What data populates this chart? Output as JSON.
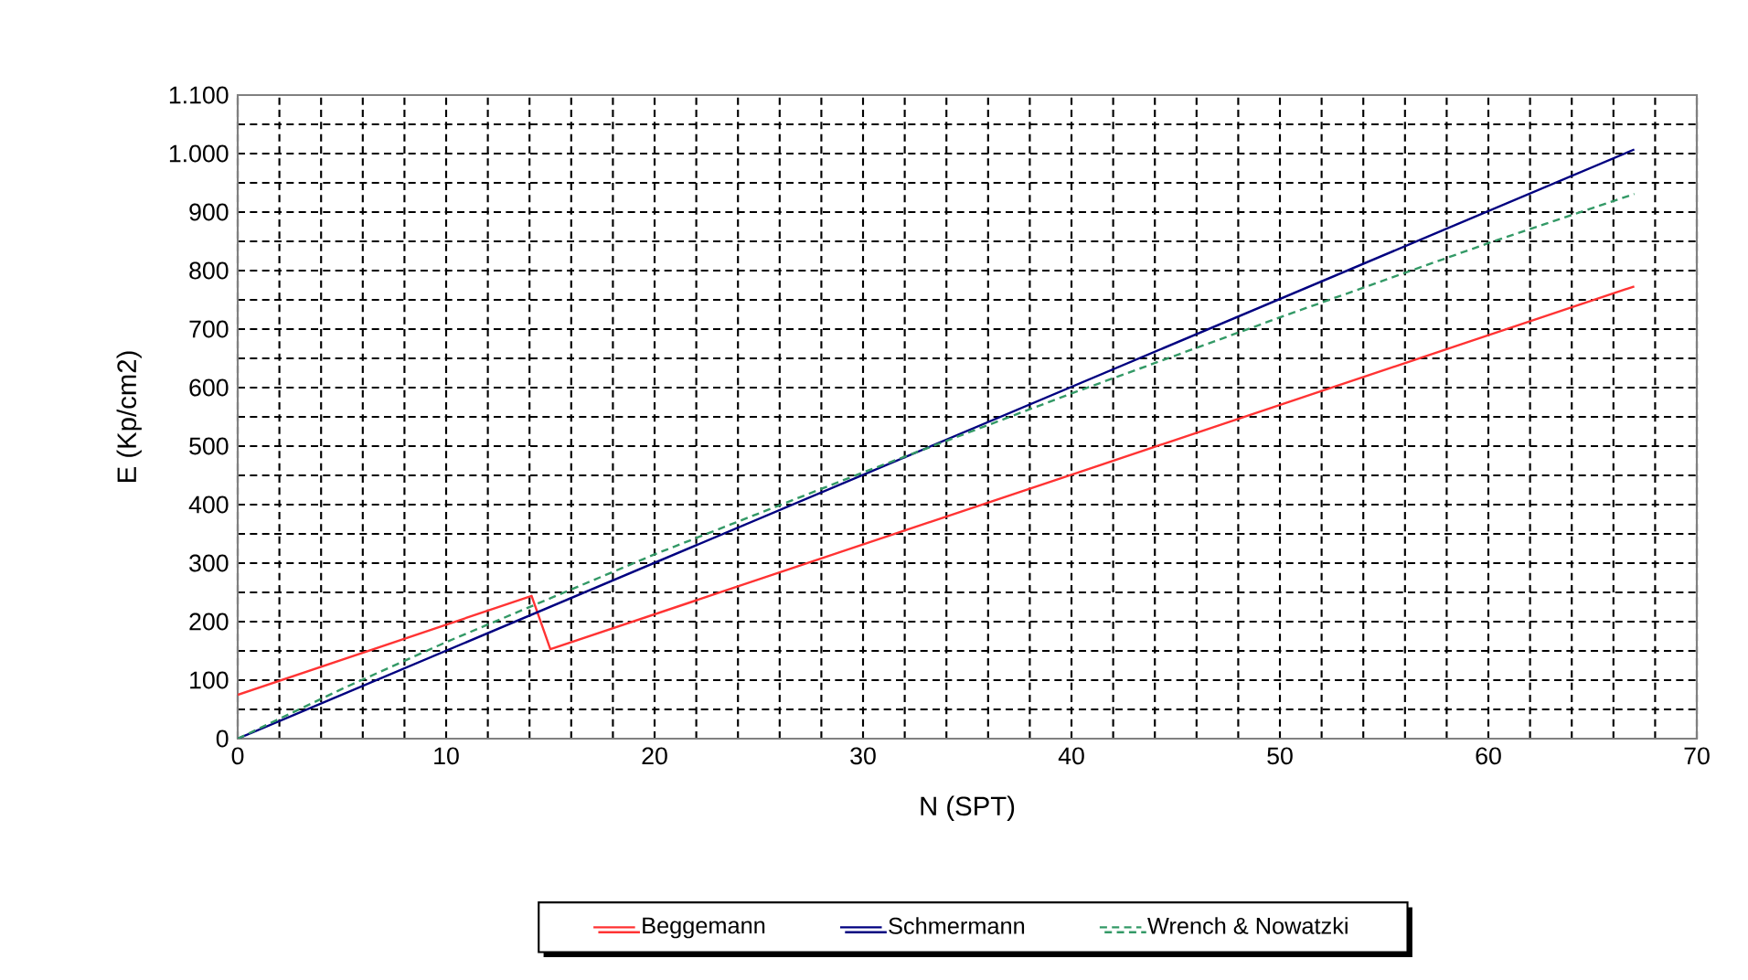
{
  "chart_data": {
    "type": "line",
    "xlabel": "N (SPT)",
    "ylabel": "E (Kp/cm2)",
    "xlim": [
      0,
      70
    ],
    "ylim": [
      0,
      1100
    ],
    "xticks": [
      0,
      {
        "value": 2,
        "label": null
      },
      {
        "value": 4,
        "label": null
      },
      {
        "value": 6,
        "label": null
      },
      {
        "value": 8,
        "label": null
      },
      10,
      {
        "value": 12,
        "label": null
      },
      {
        "value": 14,
        "label": null
      },
      {
        "value": 16,
        "label": null
      },
      {
        "value": 18,
        "label": null
      },
      20,
      {
        "value": 22,
        "label": null
      },
      {
        "value": 24,
        "label": null
      },
      {
        "value": 26,
        "label": null
      },
      {
        "value": 28,
        "label": null
      },
      30,
      {
        "value": 32,
        "label": null
      },
      {
        "value": 34,
        "label": null
      },
      {
        "value": 36,
        "label": null
      },
      {
        "value": 38,
        "label": null
      },
      40,
      {
        "value": 42,
        "label": null
      },
      {
        "value": 44,
        "label": null
      },
      {
        "value": 46,
        "label": null
      },
      {
        "value": 48,
        "label": null
      },
      50,
      {
        "value": 52,
        "label": null
      },
      {
        "value": 54,
        "label": null
      },
      {
        "value": 56,
        "label": null
      },
      {
        "value": 58,
        "label": null
      },
      60,
      {
        "value": 62,
        "label": null
      },
      {
        "value": 64,
        "label": null
      },
      {
        "value": 66,
        "label": null
      },
      {
        "value": 68,
        "label": null
      },
      70
    ],
    "yticks": [
      0,
      {
        "value": 50,
        "label": null
      },
      100,
      {
        "value": 150,
        "label": null
      },
      200,
      {
        "value": 250,
        "label": null
      },
      300,
      {
        "value": 350,
        "label": null
      },
      400,
      {
        "value": 450,
        "label": null
      },
      500,
      {
        "value": 550,
        "label": null
      },
      600,
      {
        "value": 650,
        "label": null
      },
      700,
      {
        "value": 750,
        "label": null
      },
      800,
      {
        "value": 850,
        "label": null
      },
      900,
      {
        "value": 950,
        "label": null
      },
      {
        "value": 1000,
        "label": "1.000"
      },
      {
        "value": 1050,
        "label": null
      },
      {
        "value": 1100,
        "label": "1.100"
      }
    ],
    "grid": true,
    "legend": "bottom",
    "marker": "none",
    "series": [
      {
        "name": "Beggemann",
        "color": "#ff3333",
        "line_style": "solid",
        "x": [
          0,
          14.1,
          15,
          67
        ],
        "values": [
          75,
          244,
          153,
          773
        ]
      },
      {
        "name": "Schmermann",
        "color": "#000080",
        "line_style": "solid",
        "x": [
          0,
          67
        ],
        "values": [
          0,
          1007
        ]
      },
      {
        "name": "Wrench & Nowatzki",
        "color": "#339966",
        "line_style": "dashed",
        "x": [
          0,
          5,
          10,
          15,
          20,
          30,
          40,
          50,
          60,
          67
        ],
        "values": [
          0,
          85,
          165,
          240,
          315,
          455,
          590,
          720,
          847,
          931
        ]
      }
    ]
  }
}
